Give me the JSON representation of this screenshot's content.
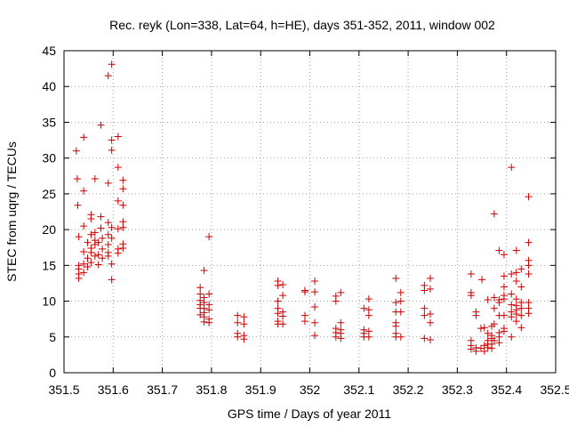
{
  "chart_data": {
    "type": "scatter",
    "title": "Rec. reyk (Lon=338, Lat=64, h=HE), days 351-352, 2011, window 002",
    "xlabel": "GPS time / Days of year 2011",
    "ylabel": "STEC from uqrg / TECUs",
    "xlim": [
      351.5,
      352.5
    ],
    "ylim": [
      0,
      45
    ],
    "x_ticks": [
      "351.5",
      "351.6",
      "351.7",
      "351.8",
      "351.9",
      "352",
      "352.1",
      "352.2",
      "352.3",
      "352.4",
      "352.5"
    ],
    "y_ticks": [
      "0",
      "5",
      "10",
      "15",
      "20",
      "25",
      "30",
      "35",
      "40",
      "45"
    ],
    "grid": true,
    "marker": "+",
    "color": "#cc0000",
    "series": [
      {
        "values": [
          [
            351.525,
            31.0
          ],
          [
            351.527,
            27.1
          ],
          [
            351.528,
            23.4
          ],
          [
            351.53,
            19.0
          ],
          [
            351.53,
            15.0
          ],
          [
            351.53,
            14.5
          ],
          [
            351.53,
            13.8
          ],
          [
            351.53,
            13.2
          ],
          [
            351.54,
            32.9
          ],
          [
            351.54,
            25.4
          ],
          [
            351.54,
            20.5
          ],
          [
            351.54,
            16.9
          ],
          [
            351.54,
            15.2
          ],
          [
            351.54,
            14.0
          ],
          [
            351.548,
            18.2
          ],
          [
            351.548,
            16.0
          ],
          [
            351.548,
            14.8
          ],
          [
            351.555,
            22.1
          ],
          [
            351.555,
            21.5
          ],
          [
            351.555,
            19.3
          ],
          [
            351.555,
            17.4
          ],
          [
            351.555,
            16.8
          ],
          [
            351.555,
            15.4
          ],
          [
            351.563,
            27.1
          ],
          [
            351.563,
            19.6
          ],
          [
            351.563,
            18.5
          ],
          [
            351.563,
            17.9
          ],
          [
            351.563,
            16.3
          ],
          [
            351.57,
            18.2
          ],
          [
            351.57,
            16.5
          ],
          [
            351.57,
            15.1
          ],
          [
            351.575,
            34.6
          ],
          [
            351.575,
            21.8
          ],
          [
            351.575,
            20.2
          ],
          [
            351.578,
            18.8
          ],
          [
            351.578,
            17.3
          ],
          [
            351.578,
            16.0
          ],
          [
            351.59,
            41.5
          ],
          [
            351.59,
            26.5
          ],
          [
            351.59,
            21.0
          ],
          [
            351.59,
            19.3
          ],
          [
            351.59,
            17.9
          ],
          [
            351.59,
            16.8
          ],
          [
            351.59,
            16.3
          ],
          [
            351.597,
            43.1
          ],
          [
            351.597,
            32.5
          ],
          [
            351.597,
            31.1
          ],
          [
            351.597,
            20.3
          ],
          [
            351.597,
            18.8
          ],
          [
            351.597,
            15.2
          ],
          [
            351.597,
            13.0
          ],
          [
            351.61,
            33.0
          ],
          [
            351.61,
            28.7
          ],
          [
            351.61,
            24.0
          ],
          [
            351.61,
            20.1
          ],
          [
            351.61,
            17.3
          ],
          [
            351.61,
            16.7
          ],
          [
            351.62,
            26.9
          ],
          [
            351.62,
            25.7
          ],
          [
            351.62,
            23.4
          ],
          [
            351.62,
            21.1
          ],
          [
            351.62,
            20.3
          ],
          [
            351.62,
            18.0
          ],
          [
            351.62,
            17.4
          ],
          [
            351.777,
            11.9
          ],
          [
            351.777,
            11.0
          ],
          [
            351.777,
            10.1
          ],
          [
            351.777,
            9.5
          ],
          [
            351.777,
            9.0
          ],
          [
            351.777,
            8.1
          ],
          [
            351.785,
            14.3
          ],
          [
            351.785,
            10.5
          ],
          [
            351.785,
            9.8
          ],
          [
            351.785,
            9.0
          ],
          [
            351.785,
            8.4
          ],
          [
            351.785,
            7.8
          ],
          [
            351.785,
            7.1
          ],
          [
            351.795,
            19.0
          ],
          [
            351.795,
            11.0
          ],
          [
            351.795,
            9.5
          ],
          [
            351.795,
            8.8
          ],
          [
            351.795,
            7.5
          ],
          [
            351.795,
            7.0
          ],
          [
            351.853,
            8.0
          ],
          [
            351.853,
            7.0
          ],
          [
            351.853,
            5.5
          ],
          [
            351.853,
            5.0
          ],
          [
            351.866,
            7.8
          ],
          [
            351.866,
            6.8
          ],
          [
            351.866,
            5.2
          ],
          [
            351.866,
            4.7
          ],
          [
            351.935,
            12.8
          ],
          [
            351.935,
            12.2
          ],
          [
            351.935,
            10.0
          ],
          [
            351.935,
            9.0
          ],
          [
            351.935,
            8.3
          ],
          [
            351.935,
            7.2
          ],
          [
            351.935,
            6.8
          ],
          [
            351.945,
            12.3
          ],
          [
            351.945,
            10.8
          ],
          [
            351.945,
            8.5
          ],
          [
            351.945,
            7.9
          ],
          [
            351.945,
            6.8
          ],
          [
            351.99,
            11.5
          ],
          [
            351.99,
            11.3
          ],
          [
            351.99,
            8.0
          ],
          [
            351.99,
            7.2
          ],
          [
            352.01,
            12.8
          ],
          [
            352.01,
            11.3
          ],
          [
            352.01,
            9.2
          ],
          [
            352.01,
            7.0
          ],
          [
            352.01,
            5.2
          ],
          [
            352.053,
            10.7
          ],
          [
            352.053,
            10.0
          ],
          [
            352.053,
            6.2
          ],
          [
            352.053,
            5.6
          ],
          [
            352.053,
            5.0
          ],
          [
            352.063,
            11.2
          ],
          [
            352.063,
            7.0
          ],
          [
            352.063,
            6.0
          ],
          [
            352.063,
            5.5
          ],
          [
            352.063,
            4.8
          ],
          [
            352.11,
            9.0
          ],
          [
            352.11,
            6.0
          ],
          [
            352.11,
            5.5
          ],
          [
            352.11,
            5.0
          ],
          [
            352.12,
            10.3
          ],
          [
            352.12,
            8.8
          ],
          [
            352.12,
            8.0
          ],
          [
            352.12,
            5.8
          ],
          [
            352.12,
            5.0
          ],
          [
            352.175,
            13.2
          ],
          [
            352.175,
            9.8
          ],
          [
            352.175,
            8.5
          ],
          [
            352.175,
            7.0
          ],
          [
            352.175,
            6.5
          ],
          [
            352.175,
            5.5
          ],
          [
            352.175,
            5.0
          ],
          [
            352.185,
            11.2
          ],
          [
            352.185,
            10.0
          ],
          [
            352.185,
            8.5
          ],
          [
            352.185,
            5.0
          ],
          [
            352.233,
            12.2
          ],
          [
            352.233,
            11.5
          ],
          [
            352.233,
            9.0
          ],
          [
            352.233,
            8.0
          ],
          [
            352.233,
            4.8
          ],
          [
            352.245,
            13.2
          ],
          [
            352.245,
            11.7
          ],
          [
            352.245,
            8.2
          ],
          [
            352.245,
            7.0
          ],
          [
            352.245,
            4.6
          ],
          [
            352.328,
            13.8
          ],
          [
            352.328,
            11.2
          ],
          [
            352.328,
            10.8
          ],
          [
            352.328,
            4.5
          ],
          [
            352.328,
            3.8
          ],
          [
            352.328,
            3.3
          ],
          [
            352.338,
            8.5
          ],
          [
            352.338,
            8.0
          ],
          [
            352.338,
            3.5
          ],
          [
            352.338,
            3.0
          ],
          [
            352.348,
            6.2
          ],
          [
            352.348,
            3.4
          ],
          [
            352.35,
            13.0
          ],
          [
            352.355,
            6.3
          ],
          [
            352.355,
            3.8
          ],
          [
            352.355,
            3.0
          ],
          [
            352.362,
            10.2
          ],
          [
            352.362,
            5.5
          ],
          [
            352.362,
            4.5
          ],
          [
            352.362,
            4.0
          ],
          [
            352.362,
            3.5
          ],
          [
            352.37,
            6.5
          ],
          [
            352.37,
            5.2
          ],
          [
            352.37,
            4.8
          ],
          [
            352.37,
            4.0
          ],
          [
            352.37,
            3.4
          ],
          [
            352.375,
            22.2
          ],
          [
            352.375,
            10.5
          ],
          [
            352.375,
            9.0
          ],
          [
            352.375,
            6.8
          ],
          [
            352.375,
            4.5
          ],
          [
            352.385,
            17.1
          ],
          [
            352.385,
            10.2
          ],
          [
            352.385,
            9.8
          ],
          [
            352.385,
            8.0
          ],
          [
            352.385,
            5.6
          ],
          [
            352.385,
            5.0
          ],
          [
            352.385,
            4.2
          ],
          [
            352.395,
            16.5
          ],
          [
            352.395,
            13.5
          ],
          [
            352.395,
            12.0
          ],
          [
            352.395,
            10.8
          ],
          [
            352.395,
            10.3
          ],
          [
            352.395,
            8.0
          ],
          [
            352.395,
            6.2
          ],
          [
            352.395,
            5.8
          ],
          [
            352.41,
            28.7
          ],
          [
            352.41,
            13.8
          ],
          [
            352.41,
            11.0
          ],
          [
            352.41,
            9.5
          ],
          [
            352.41,
            8.5
          ],
          [
            352.41,
            7.8
          ],
          [
            352.41,
            5.0
          ],
          [
            352.42,
            17.1
          ],
          [
            352.42,
            14.0
          ],
          [
            352.42,
            12.8
          ],
          [
            352.42,
            10.3
          ],
          [
            352.42,
            9.4
          ],
          [
            352.42,
            8.8
          ],
          [
            352.42,
            8.2
          ],
          [
            352.42,
            7.2
          ],
          [
            352.43,
            14.5
          ],
          [
            352.43,
            12.0
          ],
          [
            352.43,
            9.8
          ],
          [
            352.43,
            9.0
          ],
          [
            352.43,
            8.0
          ],
          [
            352.43,
            6.3
          ],
          [
            352.445,
            24.6
          ],
          [
            352.445,
            18.2
          ],
          [
            352.445,
            15.7
          ],
          [
            352.445,
            15.0
          ],
          [
            352.445,
            13.8
          ],
          [
            352.445,
            9.8
          ],
          [
            352.445,
            9.0
          ],
          [
            352.445,
            8.3
          ]
        ]
      }
    ]
  }
}
